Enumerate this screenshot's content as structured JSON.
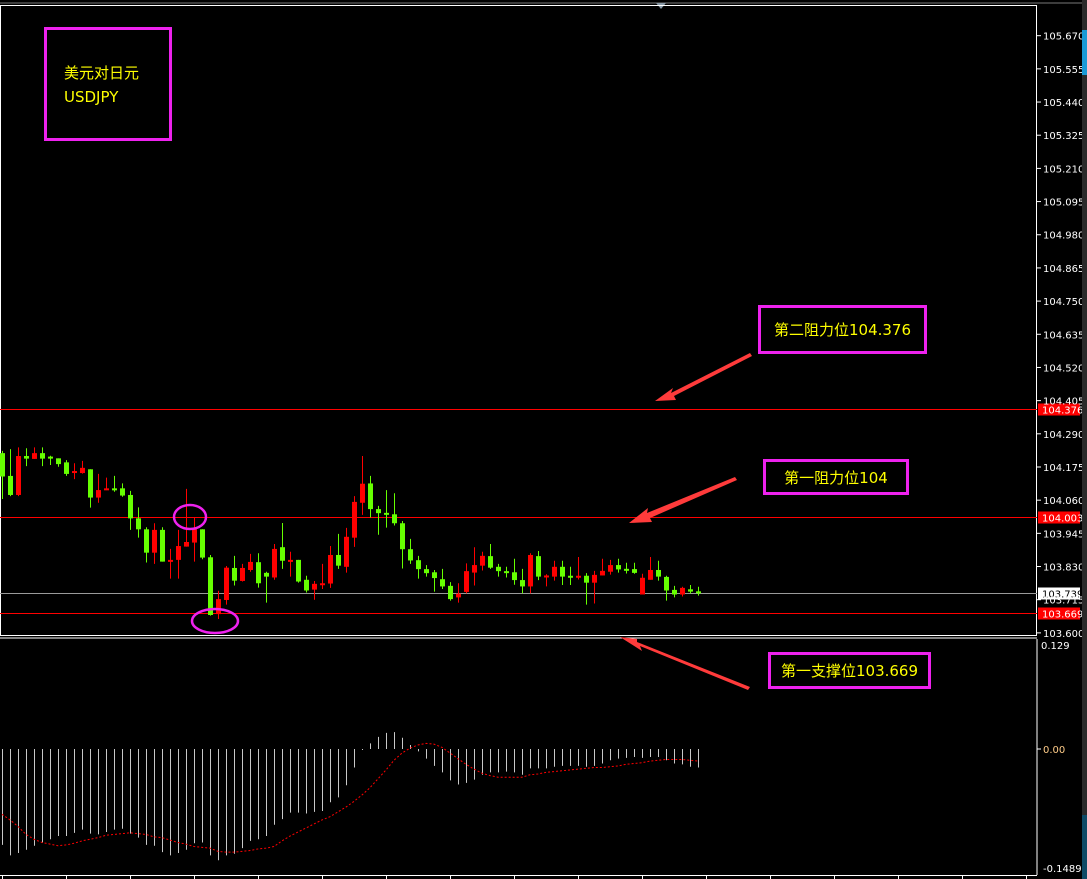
{
  "colors": {
    "background": "#000000",
    "bull": "#ff0000",
    "bear": "#66ff00",
    "level_line": "#ff0000",
    "current_line": "#9a9a9a",
    "annotation_border": "#ee22ee",
    "annotation_text": "#ffff00",
    "arrow": "#ff3b3b",
    "histogram": "#c8c8c8",
    "signal": "#ff0000",
    "axis_text": "#ffffff"
  },
  "annotations": {
    "title_line1": "美元对日元",
    "title_line2": "USDJPY",
    "resistance2": "第二阻力位104.376",
    "resistance1": "第一阻力位104",
    "support1": "第一支撑位103.669"
  },
  "chart_data": [
    {
      "type": "candlestick",
      "symbol": "USDJPY",
      "ylim": [
        103.6,
        105.7
      ],
      "y_ticks": [
        "105.670",
        "105.555",
        "105.440",
        "105.325",
        "105.210",
        "105.095",
        "104.980",
        "104.865",
        "104.750",
        "104.635",
        "104.520",
        "104.405",
        "104.290",
        "104.175",
        "104.060",
        "103.945",
        "103.830",
        "103.715",
        "103.600"
      ],
      "levels": [
        {
          "value": 104.376,
          "label": "104.376",
          "style": "red"
        },
        {
          "value": 104.003,
          "label": "104.003",
          "style": "red"
        },
        {
          "value": 103.739,
          "label": "103.739",
          "style": "current"
        },
        {
          "value": 103.669,
          "label": "103.669",
          "style": "red"
        }
      ],
      "circled_candles": [
        24,
        28
      ],
      "candles_ohlc": [
        [
          104.223,
          104.231,
          104.064,
          104.142
        ],
        [
          104.144,
          104.237,
          104.074,
          104.078
        ],
        [
          104.078,
          104.243,
          104.074,
          104.213
        ],
        [
          104.213,
          104.24,
          104.178,
          104.204
        ],
        [
          104.203,
          104.243,
          104.203,
          104.223
        ],
        [
          104.223,
          104.243,
          104.178,
          104.204
        ],
        [
          104.211,
          104.214,
          104.182,
          104.209
        ],
        [
          104.205,
          104.205,
          104.176,
          104.185
        ],
        [
          104.191,
          104.199,
          104.144,
          104.151
        ],
        [
          104.159,
          104.188,
          104.133,
          104.161
        ],
        [
          104.154,
          104.196,
          104.152,
          104.172
        ],
        [
          104.167,
          104.167,
          104.034,
          104.069
        ],
        [
          104.069,
          104.151,
          104.051,
          104.095
        ],
        [
          104.096,
          104.138,
          104.095,
          104.101
        ],
        [
          104.101,
          104.144,
          104.089,
          104.098
        ],
        [
          104.101,
          104.118,
          104.072,
          104.076
        ],
        [
          104.078,
          104.092,
          103.957,
          103.997
        ],
        [
          103.997,
          104.035,
          103.93,
          103.959
        ],
        [
          103.959,
          103.966,
          103.844,
          103.878
        ],
        [
          103.878,
          103.98,
          103.839,
          103.957
        ],
        [
          103.957,
          103.966,
          103.847,
          103.847
        ],
        [
          103.848,
          103.891,
          103.788,
          103.853
        ],
        [
          103.853,
          103.957,
          103.788,
          103.901
        ],
        [
          103.899,
          104.099,
          103.899,
          103.915
        ],
        [
          103.913,
          103.999,
          103.847,
          103.959
        ],
        [
          103.959,
          103.959,
          103.855,
          103.861
        ],
        [
          103.862,
          103.87,
          103.66,
          103.662
        ],
        [
          103.665,
          103.746,
          103.648,
          103.717
        ],
        [
          103.714,
          103.832,
          103.698,
          103.826
        ],
        [
          103.825,
          103.867,
          103.764,
          103.781
        ],
        [
          103.78,
          103.839,
          103.778,
          103.825
        ],
        [
          103.818,
          103.874,
          103.812,
          103.846
        ],
        [
          103.845,
          103.876,
          103.757,
          103.772
        ],
        [
          103.808,
          103.812,
          103.705,
          103.795
        ],
        [
          103.792,
          103.908,
          103.784,
          103.891
        ],
        [
          103.897,
          103.981,
          103.822,
          103.85
        ],
        [
          103.848,
          103.881,
          103.795,
          103.853
        ],
        [
          103.853,
          103.853,
          103.774,
          103.778
        ],
        [
          103.784,
          103.798,
          103.74,
          103.747
        ],
        [
          103.75,
          103.78,
          103.715,
          103.77
        ],
        [
          103.767,
          103.839,
          103.752,
          103.772
        ],
        [
          103.771,
          103.901,
          103.756,
          103.87
        ],
        [
          103.87,
          103.943,
          103.822,
          103.833
        ],
        [
          103.829,
          103.964,
          103.809,
          103.933
        ],
        [
          103.93,
          104.074,
          103.898,
          104.054
        ],
        [
          104.051,
          104.213,
          104.009,
          104.117
        ],
        [
          104.118,
          104.144,
          104.0,
          104.029
        ],
        [
          104.029,
          104.04,
          103.94,
          104.015
        ],
        [
          104.016,
          104.095,
          103.965,
          104.011
        ],
        [
          104.011,
          104.084,
          103.972,
          103.98
        ],
        [
          103.98,
          103.988,
          103.823,
          103.89
        ],
        [
          103.89,
          103.926,
          103.839,
          103.851
        ],
        [
          103.852,
          103.867,
          103.788,
          103.821
        ],
        [
          103.821,
          103.835,
          103.795,
          103.807
        ],
        [
          103.81,
          103.818,
          103.743,
          103.79
        ],
        [
          103.786,
          103.822,
          103.752,
          103.761
        ],
        [
          103.763,
          103.776,
          103.712,
          103.717
        ],
        [
          103.723,
          103.772,
          103.705,
          103.736
        ],
        [
          103.742,
          103.841,
          103.737,
          103.814
        ],
        [
          103.809,
          103.897,
          103.764,
          103.835
        ],
        [
          103.833,
          103.881,
          103.816,
          103.867
        ],
        [
          103.866,
          103.908,
          103.822,
          103.826
        ],
        [
          103.829,
          103.839,
          103.795,
          103.814
        ],
        [
          103.814,
          103.829,
          103.792,
          103.809
        ],
        [
          103.81,
          103.857,
          103.767,
          103.783
        ],
        [
          103.783,
          103.822,
          103.737,
          103.761
        ],
        [
          103.761,
          103.876,
          103.737,
          103.87
        ],
        [
          103.866,
          103.884,
          103.783,
          103.795
        ],
        [
          103.796,
          103.803,
          103.761,
          103.799
        ],
        [
          103.795,
          103.85,
          103.781,
          103.829
        ],
        [
          103.829,
          103.85,
          103.766,
          103.795
        ],
        [
          103.798,
          103.829,
          103.766,
          103.793
        ],
        [
          103.795,
          103.863,
          103.785,
          103.798
        ],
        [
          103.798,
          103.807,
          103.698,
          103.774
        ],
        [
          103.774,
          103.815,
          103.702,
          103.801
        ],
        [
          103.799,
          103.857,
          103.799,
          103.815
        ],
        [
          103.812,
          103.853,
          103.802,
          103.835
        ],
        [
          103.835,
          103.857,
          103.809,
          103.82
        ],
        [
          103.822,
          103.843,
          103.806,
          103.817
        ],
        [
          103.821,
          103.843,
          103.805,
          103.808
        ],
        [
          103.733,
          103.805,
          103.733,
          103.791
        ],
        [
          103.784,
          103.863,
          103.784,
          103.818
        ],
        [
          103.818,
          103.85,
          103.781,
          103.795
        ],
        [
          103.794,
          103.798,
          103.712,
          103.747
        ],
        [
          103.749,
          103.763,
          103.723,
          103.733
        ],
        [
          103.733,
          103.76,
          103.726,
          103.756
        ],
        [
          103.751,
          103.766,
          103.737,
          103.743
        ],
        [
          103.744,
          103.76,
          103.729,
          103.737
        ]
      ]
    },
    {
      "type": "bar+line",
      "indicator": "MACD",
      "ylim": [
        -0.1489,
        0.129
      ],
      "y_ticks": [
        "0.129",
        "0.00",
        "-0.1489"
      ],
      "histogram": [
        -0.119,
        -0.132,
        -0.129,
        -0.125,
        -0.12,
        -0.116,
        -0.112,
        -0.108,
        -0.108,
        -0.104,
        -0.1,
        -0.105,
        -0.106,
        -0.103,
        -0.1,
        -0.099,
        -0.105,
        -0.11,
        -0.119,
        -0.12,
        -0.128,
        -0.132,
        -0.129,
        -0.125,
        -0.117,
        -0.116,
        -0.132,
        -0.138,
        -0.132,
        -0.13,
        -0.123,
        -0.114,
        -0.112,
        -0.108,
        -0.094,
        -0.087,
        -0.079,
        -0.079,
        -0.08,
        -0.078,
        -0.077,
        -0.066,
        -0.06,
        -0.045,
        -0.023,
        0.0,
        0.007,
        0.015,
        0.02,
        0.021,
        0.014,
        0.005,
        -0.003,
        -0.012,
        -0.021,
        -0.029,
        -0.039,
        -0.044,
        -0.042,
        -0.038,
        -0.032,
        -0.029,
        -0.029,
        -0.028,
        -0.029,
        -0.032,
        -0.024,
        -0.024,
        -0.024,
        -0.022,
        -0.021,
        -0.021,
        -0.021,
        -0.022,
        -0.021,
        -0.018,
        -0.014,
        -0.012,
        -0.011,
        -0.01,
        -0.011,
        -0.01,
        -0.01,
        -0.014,
        -0.018,
        -0.019,
        -0.022,
        -0.023
      ],
      "signal": [
        -0.081,
        -0.088,
        -0.096,
        -0.106,
        -0.112,
        -0.116,
        -0.118,
        -0.12,
        -0.119,
        -0.117,
        -0.114,
        -0.112,
        -0.11,
        -0.107,
        -0.106,
        -0.105,
        -0.104,
        -0.105,
        -0.106,
        -0.109,
        -0.11,
        -0.113,
        -0.116,
        -0.118,
        -0.121,
        -0.122,
        -0.123,
        -0.127,
        -0.128,
        -0.128,
        -0.127,
        -0.126,
        -0.124,
        -0.123,
        -0.121,
        -0.114,
        -0.108,
        -0.103,
        -0.098,
        -0.093,
        -0.088,
        -0.084,
        -0.078,
        -0.072,
        -0.065,
        -0.057,
        -0.048,
        -0.037,
        -0.026,
        -0.014,
        -0.005,
        0.001,
        0.005,
        0.007,
        0.006,
        0.002,
        -0.005,
        -0.012,
        -0.019,
        -0.025,
        -0.03,
        -0.033,
        -0.035,
        -0.035,
        -0.035,
        -0.035,
        -0.032,
        -0.031,
        -0.029,
        -0.028,
        -0.027,
        -0.026,
        -0.025,
        -0.024,
        -0.023,
        -0.023,
        -0.022,
        -0.021,
        -0.019,
        -0.018,
        -0.017,
        -0.015,
        -0.014,
        -0.013,
        -0.013,
        -0.013,
        -0.014,
        -0.015
      ]
    }
  ]
}
